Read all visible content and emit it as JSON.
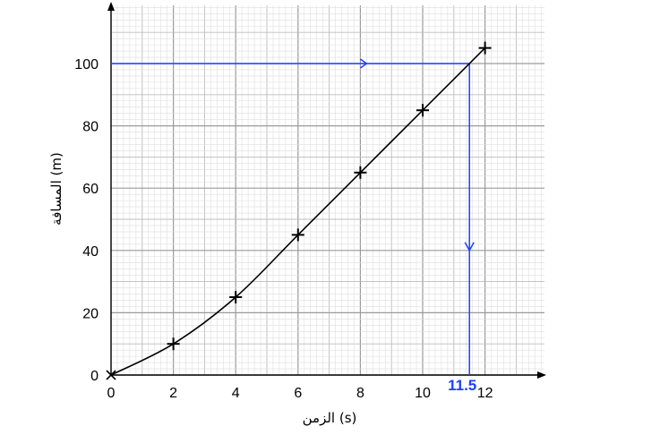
{
  "chart_data": {
    "type": "line",
    "title": "",
    "xlabel": "الزمن (s)",
    "ylabel": "المسافة (m)",
    "xlim": [
      0,
      12.6
    ],
    "ylim": [
      0,
      111
    ],
    "x_ticks": [
      0,
      2,
      4,
      6,
      8,
      10,
      12
    ],
    "y_ticks": [
      0,
      20,
      40,
      60,
      80,
      100
    ],
    "grid": true,
    "series": [
      {
        "x": [
          0,
          2,
          4,
          6,
          8,
          10,
          12
        ],
        "y": [
          0,
          10,
          25,
          45,
          65,
          85,
          105
        ],
        "marker": "plus",
        "line_color": "#000000"
      }
    ],
    "readout": {
      "y_value": 100,
      "x_value": 11.5,
      "x_label": "11.5",
      "color": "#1f3fff"
    }
  }
}
